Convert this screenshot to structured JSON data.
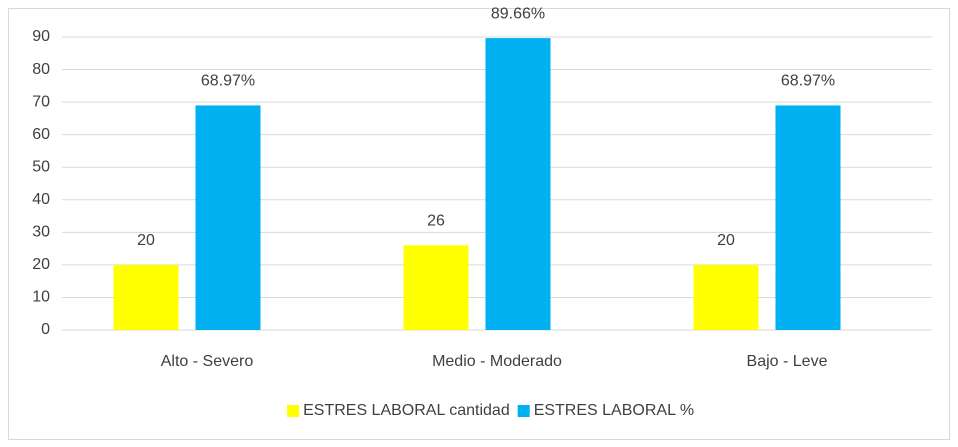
{
  "chart_data": {
    "type": "bar",
    "categories": [
      "Alto - Severo",
      "Medio - Moderado",
      "Bajo - Leve"
    ],
    "series": [
      {
        "name": "ESTRES LABORAL cantidad",
        "color": "#ffff00",
        "values": [
          20,
          26,
          20
        ]
      },
      {
        "name": "ESTRES LABORAL %",
        "color": "#00b0f0",
        "values": [
          68.97,
          89.66,
          68.97
        ],
        "value_labels": [
          "68.97%",
          "89.66%",
          "68.97%"
        ]
      }
    ],
    "ylim": [
      0,
      90
    ],
    "yticks": [
      0,
      10,
      20,
      30,
      40,
      50,
      60,
      70,
      80,
      90
    ],
    "grid": true,
    "legend": "bottom"
  }
}
